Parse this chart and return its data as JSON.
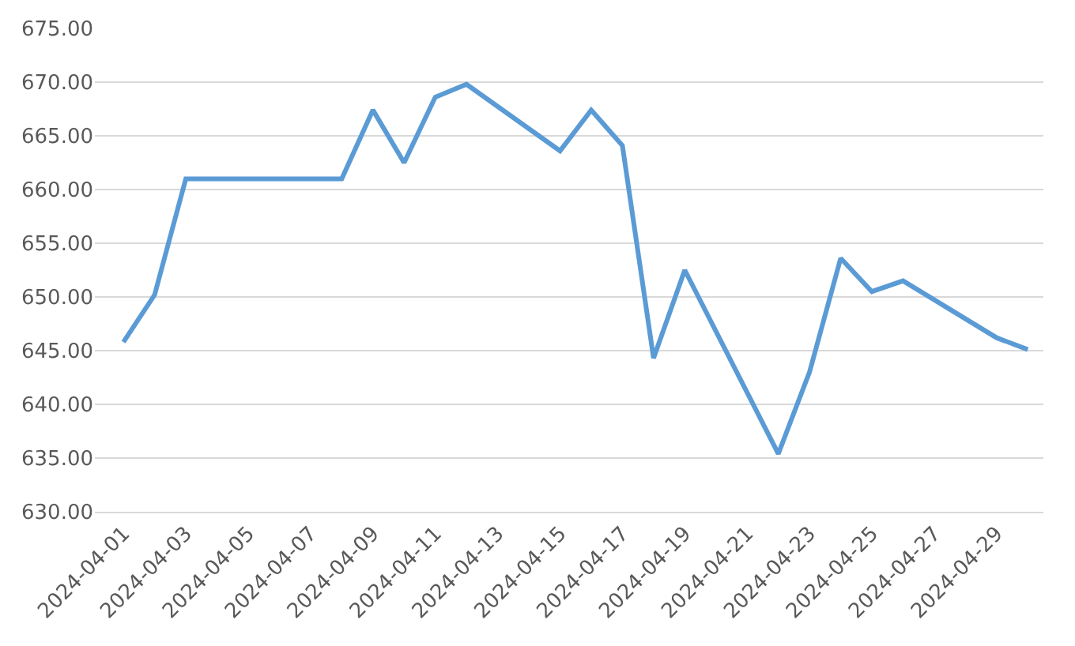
{
  "chart_data": {
    "type": "line",
    "x": [
      "2024-04-01",
      "2024-04-02",
      "2024-04-03",
      "2024-04-08",
      "2024-04-09",
      "2024-04-10",
      "2024-04-11",
      "2024-04-12",
      "2024-04-15",
      "2024-04-16",
      "2024-04-17",
      "2024-04-18",
      "2024-04-19",
      "2024-04-22",
      "2024-04-23",
      "2024-04-24",
      "2024-04-25",
      "2024-04-26",
      "2024-04-29",
      "2024-04-30"
    ],
    "series": [
      {
        "color": "#5b9bd5",
        "values": [
          645.8,
          650.2,
          661.0,
          661.0,
          667.4,
          662.5,
          668.6,
          669.8,
          663.6,
          667.4,
          664.1,
          644.3,
          652.5,
          635.4,
          643.0,
          653.6,
          650.5,
          651.5,
          646.2,
          645.1
        ]
      }
    ],
    "xlim": [
      "2024-03-31T02:00",
      "2024-04-30T12:00"
    ],
    "xticks": [
      "2024-04-01",
      "2024-04-03",
      "2024-04-05",
      "2024-04-07",
      "2024-04-09",
      "2024-04-11",
      "2024-04-13",
      "2024-04-15",
      "2024-04-17",
      "2024-04-19",
      "2024-04-21",
      "2024-04-23",
      "2024-04-25",
      "2024-04-27",
      "2024-04-29"
    ],
    "ylim": [
      630,
      675
    ],
    "yticks": [
      {
        "value": 630,
        "label": "630.00"
      },
      {
        "value": 635,
        "label": "635.00"
      },
      {
        "value": 640,
        "label": "640.00"
      },
      {
        "value": 645,
        "label": "645.00"
      },
      {
        "value": 650,
        "label": "650.00"
      },
      {
        "value": 655,
        "label": "655.00"
      },
      {
        "value": 660,
        "label": "660.00"
      },
      {
        "value": 665,
        "label": "665.00"
      },
      {
        "value": 670,
        "label": "670.00"
      },
      {
        "value": 675,
        "label": "675.00"
      }
    ],
    "grid": "y",
    "marker": "none",
    "line_style": "solid",
    "legend": false
  }
}
